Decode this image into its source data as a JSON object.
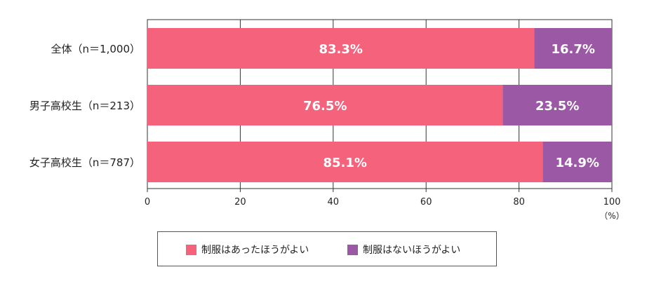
{
  "chart_data": {
    "type": "bar",
    "orientation": "horizontal",
    "stacked": true,
    "categories": [
      "全体（n＝1,000）",
      "男子高校生（n＝213）",
      "女子高校生（n＝787）"
    ],
    "series": [
      {
        "name": "制服はあったほうがよい",
        "values": [
          83.3,
          76.5,
          85.1
        ],
        "labels": [
          "83.3%",
          "76.5%",
          "85.1%"
        ],
        "color": "#f4627c"
      },
      {
        "name": "制服はないほうがよい",
        "values": [
          16.7,
          23.5,
          14.9
        ],
        "labels": [
          "16.7%",
          "23.5%",
          "14.9%"
        ],
        "color": "#9b59a5"
      }
    ],
    "xlim": [
      0,
      100
    ],
    "xticks": [
      "0",
      "20",
      "40",
      "60",
      "80",
      "100"
    ],
    "xunit": "（%）",
    "grid": true,
    "legend_position": "bottom"
  }
}
